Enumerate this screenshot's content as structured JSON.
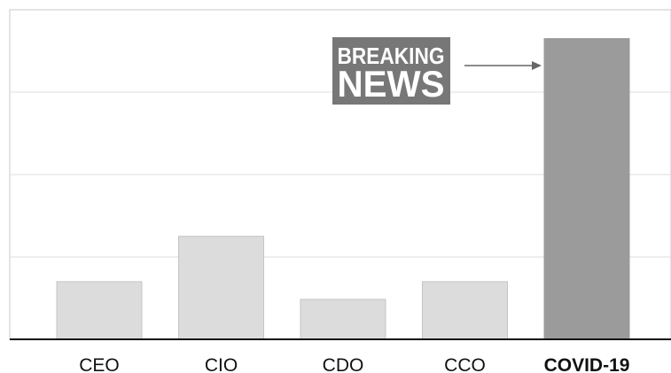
{
  "chart_data": {
    "type": "bar",
    "title": "",
    "xlabel": "",
    "ylabel": "",
    "categories": [
      "CEO",
      "CIO",
      "CDO",
      "CCO",
      "COVID-19"
    ],
    "values": [
      1.4,
      2.5,
      0.97,
      1.4,
      7.3
    ],
    "highlight_category": "COVID-19",
    "ylim": [
      0,
      8
    ],
    "grid": true,
    "y_tick_labels_shown": false,
    "colors": {
      "bar": "#dcdcdc",
      "bar_border": "#c4c4c4",
      "highlight_bar": "#9b9b9b",
      "badge": "#777777",
      "arrow": "#666666",
      "grid": "#dddddd",
      "axis": "#111111"
    },
    "annotation": {
      "line1": "BREAKING",
      "line2": "NEWS",
      "points_to": "COVID-19"
    }
  }
}
